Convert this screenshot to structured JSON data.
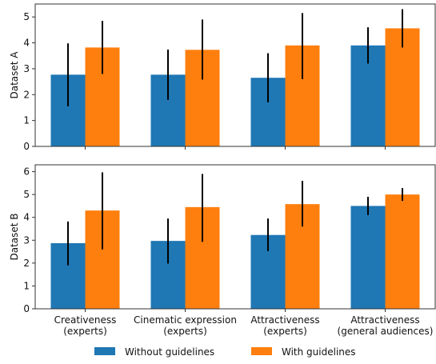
{
  "chart_data": {
    "type": "bar",
    "categories": [
      [
        "Creativeness",
        "(experts)"
      ],
      [
        "Cinematic expression",
        "(experts)"
      ],
      [
        "Attractiveness",
        "(experts)"
      ],
      [
        "Attractiveness",
        "(general audiences)"
      ]
    ],
    "legend": {
      "placement": "bottom",
      "entries": [
        {
          "label": "Without guidelines",
          "color": "#1f77b4"
        },
        {
          "label": "With guidelines",
          "color": "#ff7f0e"
        }
      ]
    },
    "panels": [
      {
        "ylabel": "Dataset A",
        "ylim": [
          0,
          5.5
        ],
        "yticks": [
          "0",
          "1",
          "2",
          "3",
          "4",
          "5"
        ],
        "series": [
          {
            "color": "#1f77b4",
            "values": [
              2.77,
              2.77,
              2.65,
              3.9
            ],
            "err_low": [
              1.55,
              1.8,
              1.7,
              3.2
            ],
            "err_high": [
              3.98,
              3.74,
              3.6,
              4.6
            ]
          },
          {
            "color": "#ff7f0e",
            "values": [
              3.82,
              3.73,
              3.9,
              4.56
            ],
            "err_low": [
              2.8,
              2.58,
              2.6,
              3.82
            ],
            "err_high": [
              4.85,
              4.9,
              5.15,
              5.3
            ]
          }
        ]
      },
      {
        "ylabel": "Dataset B",
        "ylim": [
          0,
          6.3
        ],
        "yticks": [
          "0",
          "1",
          "2",
          "3",
          "4",
          "5",
          "6"
        ],
        "series": [
          {
            "color": "#1f77b4",
            "values": [
              2.87,
              2.97,
              3.23,
              4.5
            ],
            "err_low": [
              1.9,
              1.98,
              2.52,
              4.1
            ],
            "err_high": [
              3.82,
              3.95,
              3.95,
              4.9
            ]
          },
          {
            "color": "#ff7f0e",
            "values": [
              4.3,
              4.45,
              4.58,
              5.0
            ],
            "err_low": [
              2.6,
              2.93,
              3.6,
              4.72
            ],
            "err_high": [
              5.97,
              5.9,
              5.6,
              5.28
            ]
          }
        ]
      }
    ]
  }
}
